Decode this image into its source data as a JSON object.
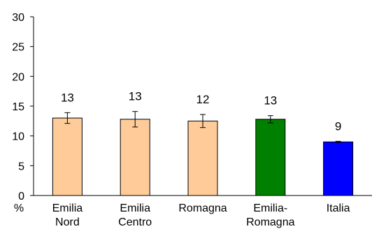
{
  "chart_data": {
    "type": "bar",
    "title": "",
    "xlabel": "",
    "ylabel": "",
    "y_unit": "%",
    "ylim": [
      0,
      30
    ],
    "yticks": [
      0,
      5,
      10,
      15,
      20,
      25,
      30
    ],
    "grid": false,
    "legend": "none",
    "categories": [
      [
        "Emilia",
        "Nord"
      ],
      [
        "Emilia",
        "Centro"
      ],
      [
        "Romagna"
      ],
      [
        "Emilia-",
        "Romagna"
      ],
      [
        "Italia"
      ]
    ],
    "values": [
      13.0,
      12.8,
      12.5,
      12.8,
      9.0
    ],
    "data_labels": [
      "13",
      "13",
      "12",
      "13",
      "9"
    ],
    "error_low": [
      12.1,
      11.5,
      11.4,
      12.2,
      8.9
    ],
    "error_high": [
      13.9,
      14.1,
      13.6,
      13.4,
      9.1
    ],
    "colors": [
      "#FFCC99",
      "#FFCC99",
      "#FFCC99",
      "#008000",
      "#0000FF"
    ],
    "outline_color": "#000000"
  }
}
